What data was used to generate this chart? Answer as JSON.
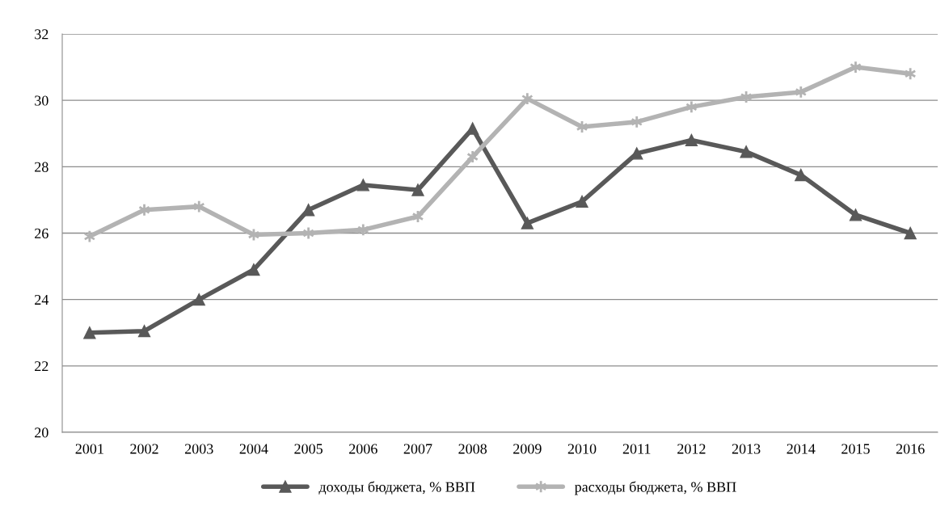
{
  "chart_data": {
    "type": "line",
    "categories": [
      "2001",
      "2002",
      "2003",
      "2004",
      "2005",
      "2006",
      "2007",
      "2008",
      "2009",
      "2010",
      "2011",
      "2012",
      "2013",
      "2014",
      "2015",
      "2016"
    ],
    "series": [
      {
        "name": "доходы бюджета, % ВВП",
        "color": "#595959",
        "marker": "triangle",
        "values": [
          23.0,
          23.05,
          24.0,
          24.9,
          26.7,
          27.45,
          27.3,
          29.15,
          26.3,
          26.95,
          28.4,
          28.8,
          28.45,
          27.75,
          26.55,
          26.0
        ]
      },
      {
        "name": "расходы бюджета, % ВВП",
        "color": "#b3b3b3",
        "marker": "cross",
        "values": [
          25.9,
          26.7,
          26.8,
          25.95,
          26.0,
          26.1,
          26.5,
          28.3,
          30.05,
          29.2,
          29.35,
          29.8,
          30.1,
          30.25,
          31.0,
          30.8
        ]
      }
    ],
    "ylim": [
      20,
      32
    ],
    "yticks": [
      20,
      22,
      24,
      26,
      28,
      30,
      32
    ],
    "grid": "y",
    "legend": "bottom",
    "line_style": "solid"
  }
}
